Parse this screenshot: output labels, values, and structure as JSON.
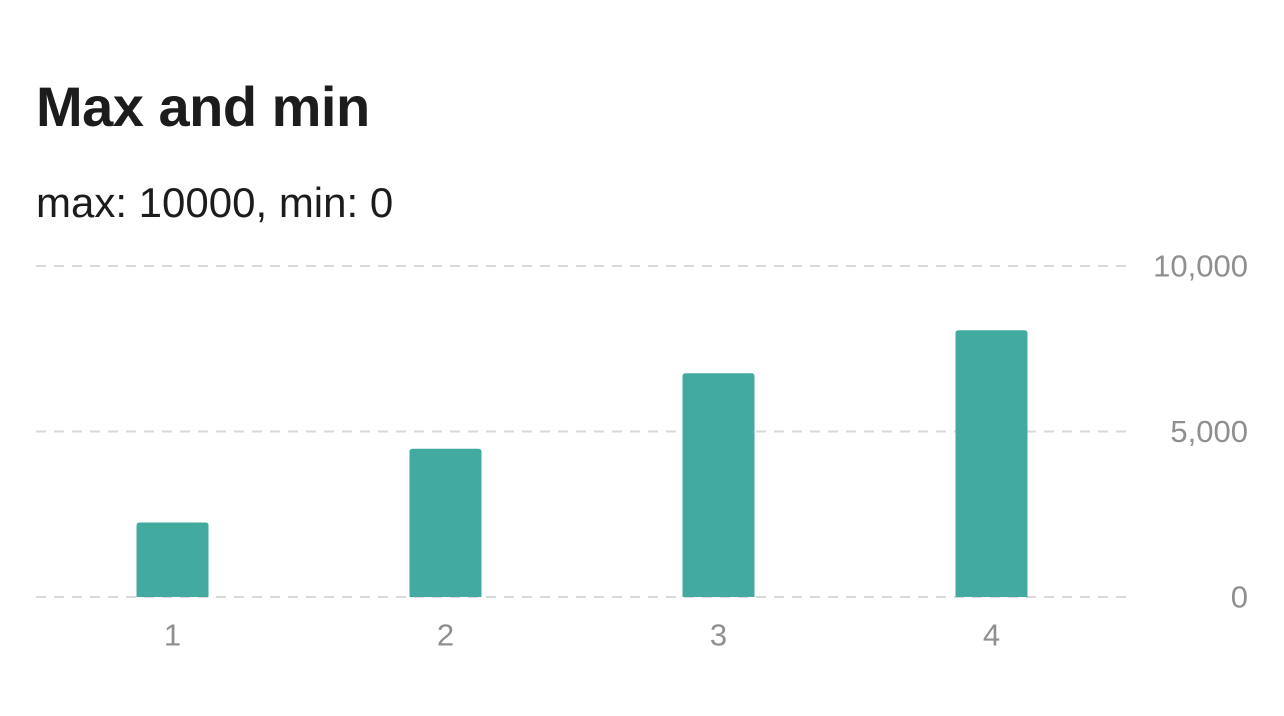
{
  "header": {
    "title": "Max and min",
    "subtitle": "max: 10000, min: 0"
  },
  "chart_data": {
    "type": "bar",
    "title": "Max and min",
    "subtitle": "max: 10000, min: 0",
    "categories": [
      "1",
      "2",
      "3",
      "4"
    ],
    "values": [
      2250,
      4480,
      6760,
      8060
    ],
    "ylim": [
      0,
      10000
    ],
    "yticks": [
      0,
      5000,
      10000
    ],
    "ytick_labels": [
      "0",
      "5,000",
      "10,000"
    ],
    "y_axis_side": "right",
    "grid": true,
    "grid_style": "dashed",
    "bar_color": "#43aaa0",
    "xlabel": "",
    "ylabel": ""
  }
}
